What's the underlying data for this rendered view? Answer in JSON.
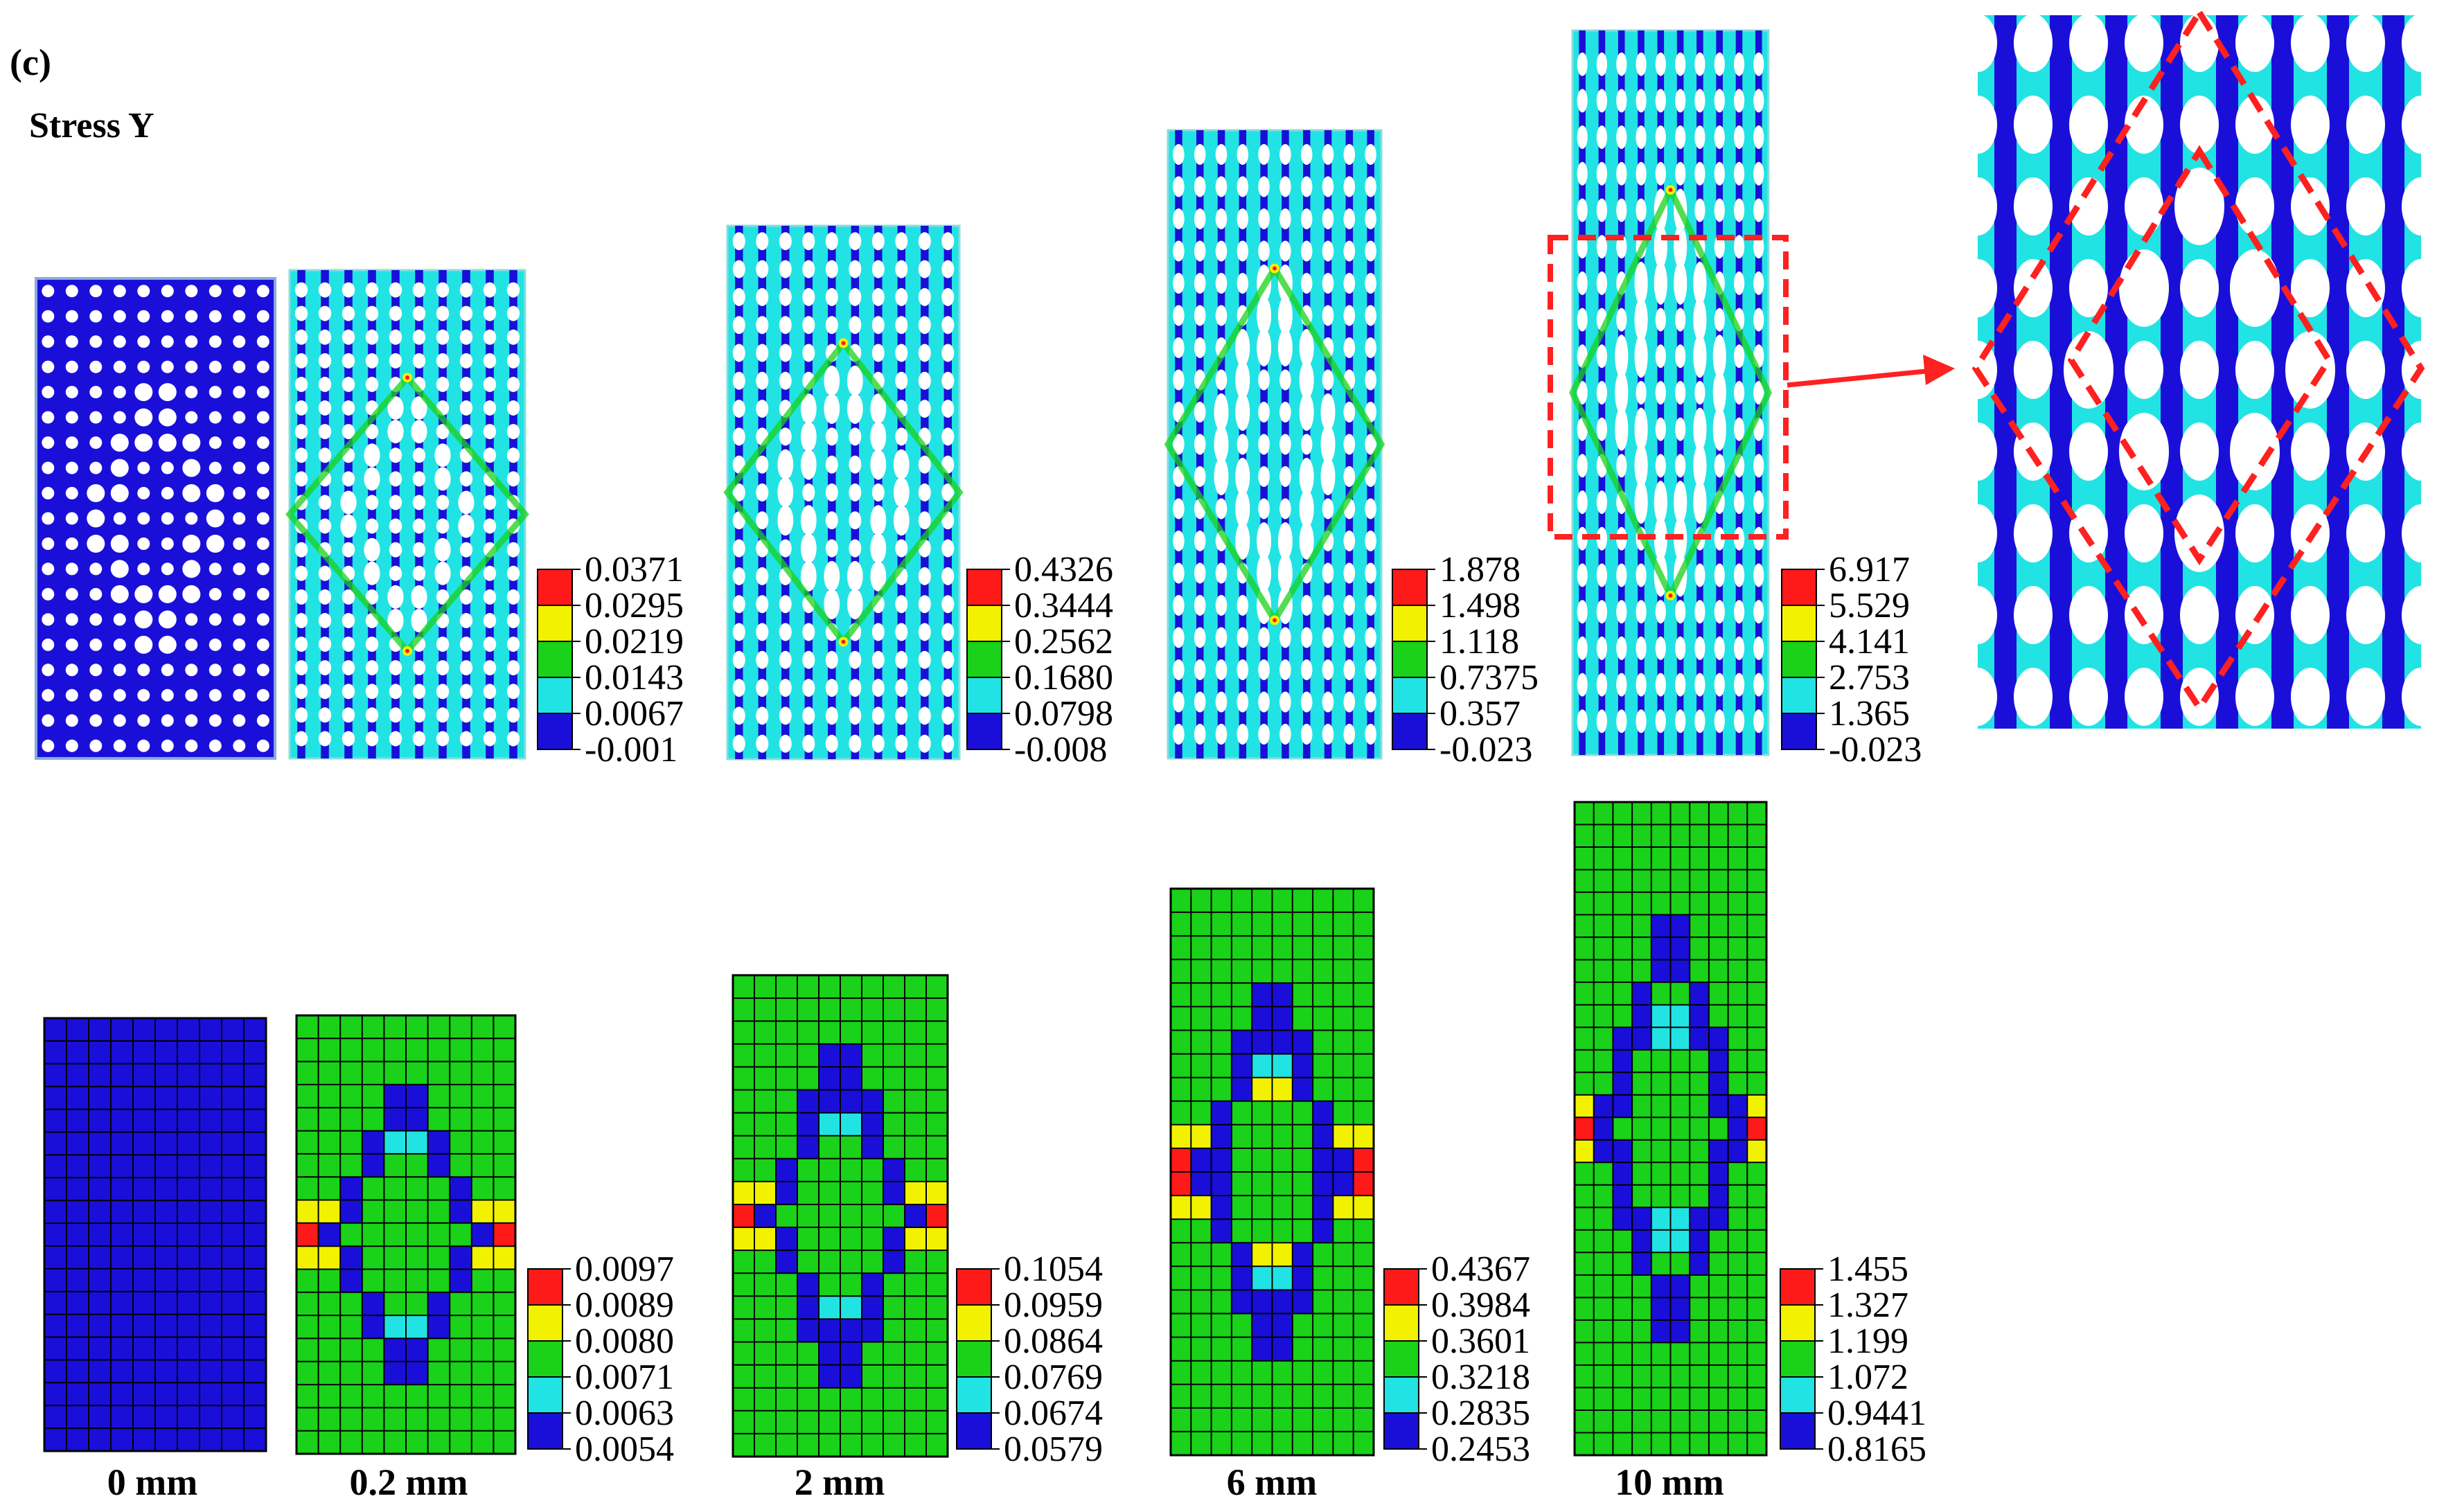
{
  "panel_label": "(c)",
  "title": "Stress Y",
  "colors": {
    "red": "#ff1a1a",
    "yellow": "#f2f200",
    "green": "#19d219",
    "cyan": "#22e3e3",
    "blue": "#1a0fd9",
    "hole": "#ffffff",
    "annotation": "#ff2020"
  },
  "displacements": [
    "0 mm",
    "0.2 mm",
    "2 mm",
    "6 mm",
    "10 mm"
  ],
  "top_legends": [
    [
      "0.0371",
      "0.0295",
      "0.0219",
      "0.0143",
      "0.0067",
      "-0.001"
    ],
    [
      "0.4326",
      "0.3444",
      "0.2562",
      "0.1680",
      "0.0798",
      "-0.008"
    ],
    [
      "1.878",
      "1.498",
      "1.118",
      "0.7375",
      "0.357",
      "-0.023"
    ],
    [
      "6.917",
      "5.529",
      "4.141",
      "2.753",
      "1.365",
      "-0.023"
    ]
  ],
  "bottom_legends": [
    [
      "0.0097",
      "0.0089",
      "0.0080",
      "0.0071",
      "0.0063",
      "0.0054"
    ],
    [
      "0.1054",
      "0.0959",
      "0.0864",
      "0.0769",
      "0.0674",
      "0.0579"
    ],
    [
      "0.4367",
      "0.3984",
      "0.3601",
      "0.3218",
      "0.2835",
      "0.2453"
    ],
    [
      "1.455",
      "1.327",
      "1.199",
      "1.072",
      "0.9441",
      "0.8165"
    ]
  ]
}
